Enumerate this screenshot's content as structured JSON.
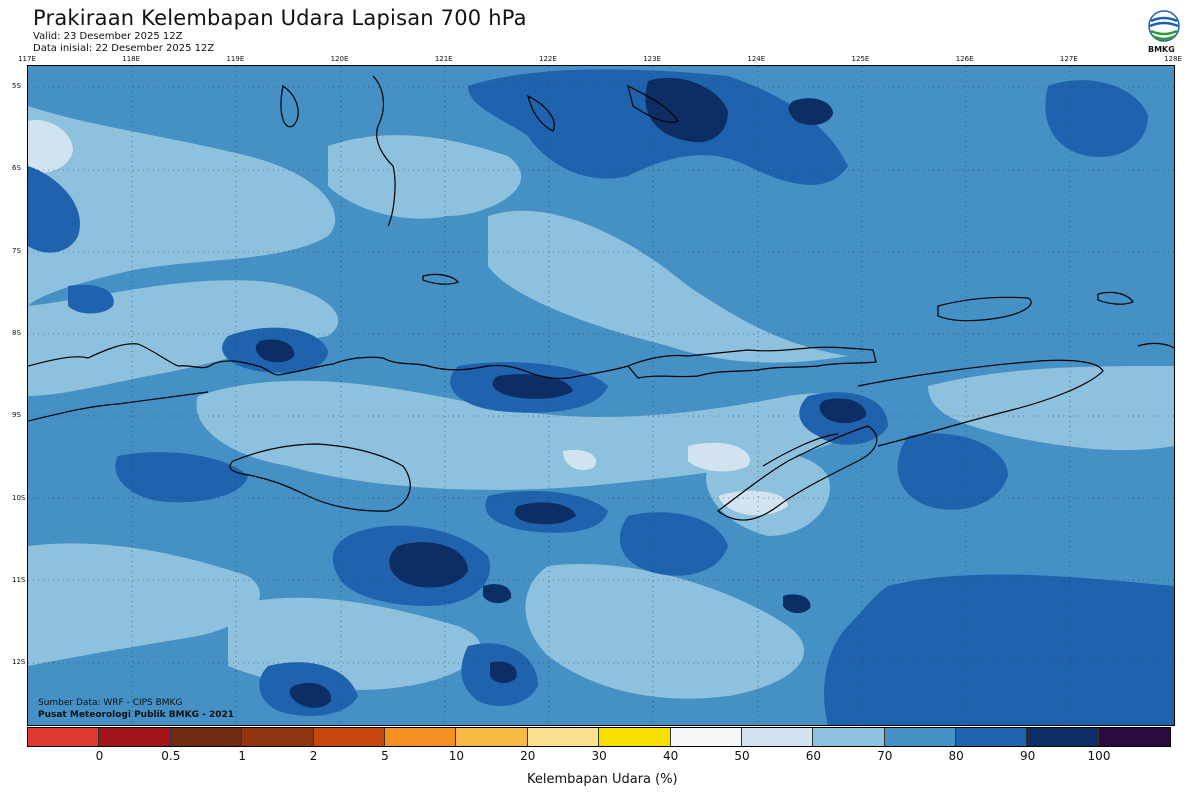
{
  "header": {
    "title": "Prakiraan Kelembapan Udara Lapisan 700 hPa",
    "valid": "Valid: 23 Desember 2025 12Z",
    "initial": "Data inisial: 22 Desember 2025 12Z"
  },
  "logo": {
    "text": "BMKG",
    "icon": "bmkg-logo-icon"
  },
  "map": {
    "lon_labels": [
      "117E",
      "118E",
      "119E",
      "120E",
      "121E",
      "122E",
      "123E",
      "124E",
      "125E",
      "126E",
      "127E",
      "128E"
    ],
    "lat_labels": [
      "5S",
      "6S",
      "7S",
      "8S",
      "9S",
      "10S",
      "11S",
      "12S"
    ],
    "source_line": "Sumber Data: WRF - CIPS BMKG",
    "credit_line": "Pusat Meteorologi Publik BMKG - 2021"
  },
  "colorbar": {
    "colors": [
      "#e03a30",
      "#a5141b",
      "#6e2a13",
      "#8f3510",
      "#c7480e",
      "#f39021",
      "#f8b844",
      "#fbe08d",
      "#f6de00",
      "#f7f7f7",
      "#d1e3ef",
      "#8ec1de",
      "#4590c4",
      "#1f62ad",
      "#0c2e64",
      "#2a0a3f"
    ],
    "ticks": [
      "0",
      "0.5",
      "1",
      "2",
      "5",
      "10",
      "20",
      "30",
      "40",
      "50",
      "60",
      "70",
      "80",
      "90",
      "100"
    ],
    "label": "Kelembapan Udara (%)"
  }
}
